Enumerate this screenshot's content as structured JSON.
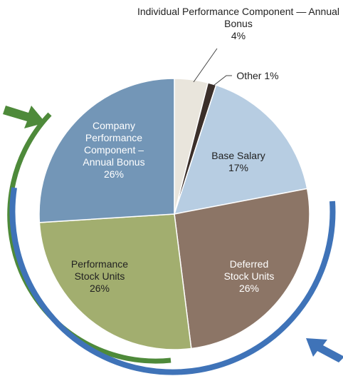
{
  "chart_data": {
    "type": "pie",
    "categories": [
      "Individual Performance Component — Annual Bonus",
      "Other",
      "Base Salary",
      "Deferred Stock Units",
      "Performance Stock Units",
      "Company Performance Component – Annual Bonus"
    ],
    "values": [
      4,
      1,
      17,
      26,
      26,
      26
    ],
    "value_labels": [
      "4%",
      "1%",
      "17%",
      "26%",
      "26%",
      "26%"
    ],
    "colors": [
      "#e9e5dc",
      "#3b2f2a",
      "#b7cde2",
      "#8c7566",
      "#a2ae6f",
      "#7396b7"
    ]
  }
}
